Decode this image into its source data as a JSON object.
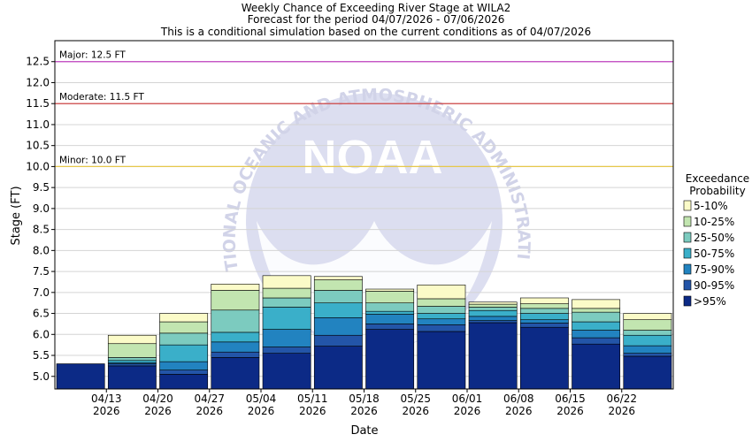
{
  "chart_data": {
    "type": "bar",
    "title_lines": [
      "Weekly Chance of Exceeding River Stage at WILA2",
      "Forecast for the period 04/07/2026 - 07/06/2026",
      "This is a conditional simulation based on the current conditions as of 04/07/2026"
    ],
    "xlabel": "Date",
    "ylabel": "Stage (FT)",
    "ylim": [
      4.7,
      13.0
    ],
    "yticks": [
      "5.0",
      "5.5",
      "6.0",
      "6.5",
      "7.0",
      "7.5",
      "8.0",
      "8.5",
      "9.0",
      "9.5",
      "10.0",
      "10.5",
      "11.0",
      "11.5",
      "12.0",
      "12.5"
    ],
    "xticks": [
      {
        "top": "04/13",
        "bottom": "2026"
      },
      {
        "top": "04/20",
        "bottom": "2026"
      },
      {
        "top": "04/27",
        "bottom": "2026"
      },
      {
        "top": "05/04",
        "bottom": "2026"
      },
      {
        "top": "05/11",
        "bottom": "2026"
      },
      {
        "top": "05/18",
        "bottom": "2026"
      },
      {
        "top": "05/25",
        "bottom": "2026"
      },
      {
        "top": "06/01",
        "bottom": "2026"
      },
      {
        "top": "06/08",
        "bottom": "2026"
      },
      {
        "top": "06/15",
        "bottom": "2026"
      },
      {
        "top": "06/22",
        "bottom": "2026"
      }
    ],
    "thresholds": [
      {
        "label": "Major: 12.5 FT",
        "value": 12.5,
        "color": "#c040c0"
      },
      {
        "label": "Moderate: 11.5 FT",
        "value": 11.5,
        "color": "#cc3333"
      },
      {
        "label": "Minor: 10.0 FT",
        "value": 10.0,
        "color": "#e6c84a"
      }
    ],
    "legend_title": [
      "Exceedance",
      "Probability"
    ],
    "series": [
      {
        "name": ">95%",
        "color": "#0c2a86"
      },
      {
        "name": "90-95%",
        "color": "#2355a8"
      },
      {
        "name": "75-90%",
        "color": "#2283c0"
      },
      {
        "name": "50-75%",
        "color": "#3aafc9"
      },
      {
        "name": "25-50%",
        "color": "#7ccbbf"
      },
      {
        "name": "10-25%",
        "color": "#c2e5b0"
      },
      {
        "name": "5-10%",
        "color": "#fbfbc8"
      }
    ],
    "bars": [
      [
        5.3
      ],
      [
        5.25,
        5.3,
        5.33,
        5.38,
        5.45,
        5.78,
        5.98
      ],
      [
        5.05,
        5.15,
        5.35,
        5.75,
        6.03,
        6.3,
        6.5
      ],
      [
        5.45,
        5.58,
        5.82,
        6.05,
        6.58,
        7.05,
        7.2
      ],
      [
        5.55,
        5.7,
        6.12,
        6.65,
        6.87,
        7.1,
        7.4
      ],
      [
        5.72,
        5.98,
        6.4,
        6.75,
        7.05,
        7.3,
        7.38
      ],
      [
        6.12,
        6.25,
        6.48,
        6.55,
        6.75,
        7.03,
        7.08
      ],
      [
        6.07,
        6.23,
        6.37,
        6.5,
        6.67,
        6.85,
        7.18
      ],
      [
        6.28,
        6.33,
        6.43,
        6.57,
        6.65,
        6.72,
        6.77
      ],
      [
        6.17,
        6.27,
        6.35,
        6.5,
        6.62,
        6.73,
        6.87
      ],
      [
        5.77,
        5.92,
        6.1,
        6.3,
        6.53,
        6.62,
        6.83
      ],
      [
        5.48,
        5.55,
        5.73,
        5.98,
        6.1,
        6.35,
        6.5
      ]
    ]
  },
  "watermark": {
    "text": "NATIONAL OCEANIC AND ATMOSPHERIC ADMINISTRATION",
    "logo": "NOAA"
  }
}
